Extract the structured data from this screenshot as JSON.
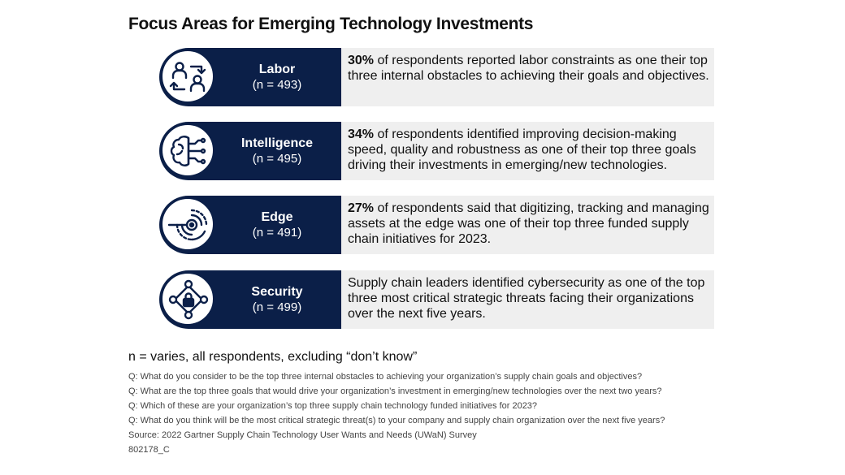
{
  "title": "Focus Areas for Emerging Technology Investments",
  "areas": [
    {
      "name": "Labor",
      "n": "(n = 493)",
      "highlight": "30%",
      "text": " of respondents reported labor constraints as one their top three internal obstacles to achieving their goals and objectives.",
      "icon": "people-exchange-icon"
    },
    {
      "name": "Intelligence",
      "n": "(n = 495)",
      "highlight": "34%",
      "text": " of respondents identified improving decision-making speed, quality and robustness as one of their top three goals driving their investments in emerging/new technologies.",
      "icon": "brain-circuit-icon"
    },
    {
      "name": "Edge",
      "n": "(n = 491)",
      "highlight": "27%",
      "text": " of respondents said that digitizing, tracking and managing assets at the edge was one of their top three funded supply chain initiatives for 2023.",
      "icon": "edge-target-icon"
    },
    {
      "name": "Security",
      "n": "(n = 499)",
      "highlight": "",
      "text": "Supply chain leaders identified cybersecurity as one of the top three most critical strategic threats facing their organizations over the next five years.",
      "icon": "network-lock-icon"
    }
  ],
  "note": "n = varies, all respondents, excluding “don’t know”",
  "footnotes": [
    "Q: What do you consider to be the top three internal obstacles to achieving your organization’s supply chain goals and objectives?",
    "Q: What are the top three goals that would drive your organization’s investment in emerging/new technologies over the next two years?",
    "Q: Which of these are your organization’s top three supply chain technology funded initiatives for 2023?",
    "Q: What do you think will be the most critical strategic threat(s) to your company and supply chain organization over the next five years?",
    "Source: 2022 Gartner Supply Chain Technology User Wants and Needs (UWaN) Survey",
    "802178_C"
  ],
  "colors": {
    "navy": "#0b1f48",
    "panel": "#efefef"
  }
}
